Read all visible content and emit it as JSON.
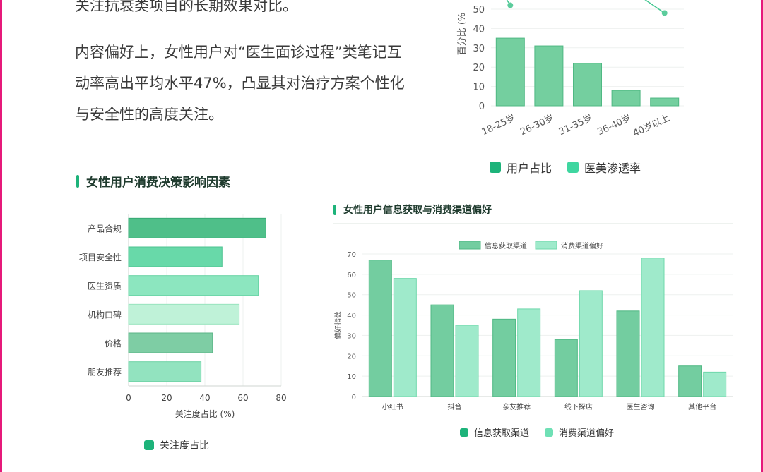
{
  "text": {
    "para1": "关注抗衰类项目的长期效果对比。",
    "para2": "内容偏好上，女性用户对“医生面诊过程”类笔记互动率高出平均水平47%，凸显其对治疗方案个性化与安全性的高度关注。"
  },
  "colors": {
    "edge": "#e6197a",
    "accent": "#1db37a",
    "green_dark": "#5cc795",
    "green_light": "#8ee8c4"
  },
  "chart_data": [
    {
      "id": "age",
      "type": "bar",
      "title": "",
      "categories": [
        "18-25岁",
        "26-30岁",
        "31-35岁",
        "36-40岁",
        "40岁以上"
      ],
      "series": [
        {
          "name": "用户占比",
          "type": "bar",
          "values": [
            35,
            31,
            22,
            8,
            4
          ]
        },
        {
          "name": "医美渗透率",
          "type": "line",
          "values": [
            null,
            null,
            null,
            null,
            null
          ],
          "visible_points": [
            {
              "category": "18-25岁",
              "value": 52
            },
            {
              "category": "40岁以上",
              "value": 48
            }
          ]
        }
      ],
      "ylabel": "百分比 (%",
      "yticks": [
        0,
        10,
        20,
        30,
        40,
        50
      ],
      "ylim": [
        0,
        50
      ],
      "legend": [
        "用户占比",
        "医美渗透率"
      ],
      "legend_position": "bottom"
    },
    {
      "id": "factors",
      "type": "bar",
      "orientation": "horizontal",
      "title": "女性用户消费决策影响因素",
      "categories": [
        "产品合规",
        "项目安全性",
        "医生资质",
        "机构口碑",
        "价格",
        "朋友推荐"
      ],
      "values": [
        72,
        49,
        68,
        58,
        44,
        38
      ],
      "xlabel": "关注度占比 (%)",
      "xticks": [
        0,
        20,
        40,
        60,
        80
      ],
      "xlim": [
        0,
        80
      ],
      "legend": [
        "关注度占比"
      ],
      "legend_position": "bottom"
    },
    {
      "id": "channels",
      "type": "bar",
      "title": "女性用户信息获取与消费渠道偏好",
      "categories": [
        "小红书",
        "抖音",
        "亲友推荐",
        "线下探店",
        "医生咨询",
        "其他平台"
      ],
      "series": [
        {
          "name": "信息获取渠道",
          "values": [
            67,
            45,
            38,
            28,
            42,
            15
          ]
        },
        {
          "name": "消费渠道偏好",
          "values": [
            58,
            35,
            43,
            52,
            68,
            12
          ]
        }
      ],
      "ylabel": "偏好指数",
      "yticks": [
        0,
        10,
        20,
        30,
        40,
        50,
        60,
        70
      ],
      "ylim": [
        0,
        70
      ],
      "legend": [
        "信息获取渠道",
        "消费渠道偏好"
      ],
      "legend_position": "top and bottom"
    }
  ]
}
